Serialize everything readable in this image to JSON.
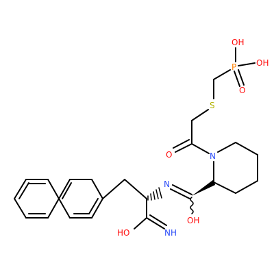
{
  "molecule": {
    "atoms": [
      {
        "symbol": "O",
        "label": "OH",
        "element": "O",
        "color": "#ff0d0d"
      },
      {
        "symbol": "O",
        "label": "OH",
        "element": "O",
        "color": "#ff0d0d"
      },
      {
        "symbol": "P",
        "label": "P",
        "element": "P",
        "color": "#ff8000"
      },
      {
        "symbol": "O",
        "label": "O",
        "element": "O",
        "color": "#ff0d0d"
      },
      {
        "symbol": "S",
        "label": "S",
        "element": "S",
        "color": "#b2b200"
      },
      {
        "symbol": "O",
        "label": "O",
        "element": "O",
        "color": "#ff0d0d"
      },
      {
        "symbol": "N",
        "label": "N",
        "element": "N",
        "color": "#3050f8"
      },
      {
        "symbol": "N",
        "label": "N",
        "element": "N",
        "color": "#3050f8"
      },
      {
        "symbol": "O",
        "label": "OH",
        "element": "O",
        "color": "#ff0d0d"
      },
      {
        "symbol": "O",
        "label": "HO",
        "element": "O",
        "color": "#ff0d0d"
      },
      {
        "symbol": "N",
        "label": "NH",
        "element": "N",
        "color": "#3050f8"
      }
    ]
  }
}
